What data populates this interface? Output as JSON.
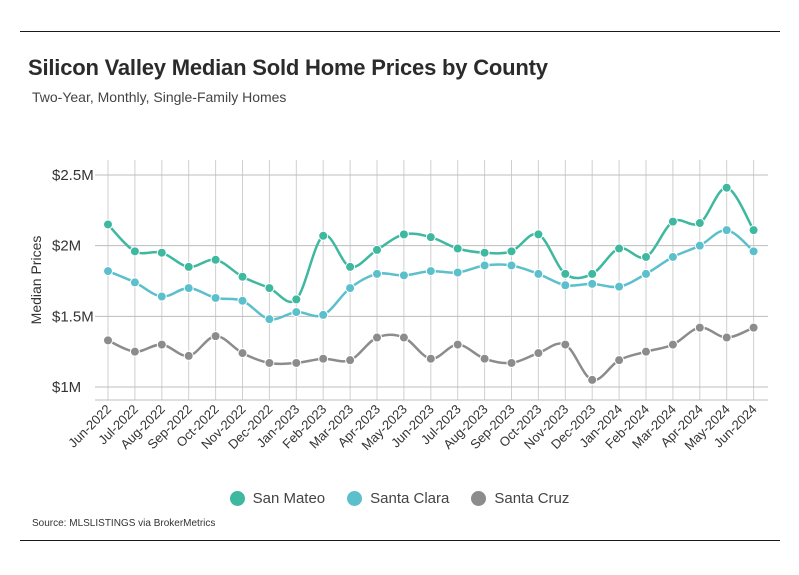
{
  "title": "Silicon Valley Median Sold Home Prices by County",
  "subtitle": "Two-Year, Monthly, Single-Family Homes",
  "source": "Source:  MLSLISTINGS via BrokerMetrics",
  "chart_data": {
    "type": "line",
    "ylabel": "Median Prices",
    "xlabel": "",
    "ylim": [
      0.9,
      2.5
    ],
    "yticks": [
      1.0,
      1.5,
      2.0,
      2.5
    ],
    "ytick_labels": [
      "$1M",
      "$1.5M",
      "$2M",
      "$2.5M"
    ],
    "grid": true,
    "legend": "bottom",
    "categories": [
      "Jun-2022",
      "Jul-2022",
      "Aug-2022",
      "Sep-2022",
      "Oct-2022",
      "Nov-2022",
      "Dec-2022",
      "Jan-2023",
      "Feb-2023",
      "Mar-2023",
      "Apr-2023",
      "May-2023",
      "Jun-2023",
      "Jul-2023",
      "Aug-2023",
      "Sep-2023",
      "Oct-2023",
      "Nov-2023",
      "Dec-2023",
      "Jan-2024",
      "Feb-2024",
      "Mar-2024",
      "Apr-2024",
      "May-2024",
      "Jun-2024"
    ],
    "series": [
      {
        "name": "San Mateo",
        "color": "#3fb8a0",
        "values": [
          2.15,
          1.96,
          1.95,
          1.85,
          1.9,
          1.78,
          1.7,
          1.62,
          2.07,
          1.85,
          1.97,
          2.08,
          2.06,
          1.98,
          1.95,
          1.96,
          2.08,
          1.8,
          1.8,
          1.98,
          1.92,
          2.17,
          2.16,
          2.41,
          2.11
        ]
      },
      {
        "name": "Santa Clara",
        "color": "#5cc0cc",
        "values": [
          1.82,
          1.74,
          1.64,
          1.7,
          1.63,
          1.61,
          1.48,
          1.53,
          1.51,
          1.7,
          1.8,
          1.79,
          1.82,
          1.81,
          1.86,
          1.86,
          1.8,
          1.72,
          1.73,
          1.71,
          1.8,
          1.92,
          2.0,
          2.11,
          1.96
        ]
      },
      {
        "name": "Santa Cruz",
        "color": "#8c8c8c",
        "values": [
          1.33,
          1.25,
          1.3,
          1.22,
          1.36,
          1.24,
          1.17,
          1.17,
          1.2,
          1.19,
          1.35,
          1.35,
          1.2,
          1.3,
          1.2,
          1.17,
          1.24,
          1.3,
          1.05,
          1.19,
          1.25,
          1.3,
          1.42,
          1.35,
          1.42
        ]
      }
    ]
  }
}
